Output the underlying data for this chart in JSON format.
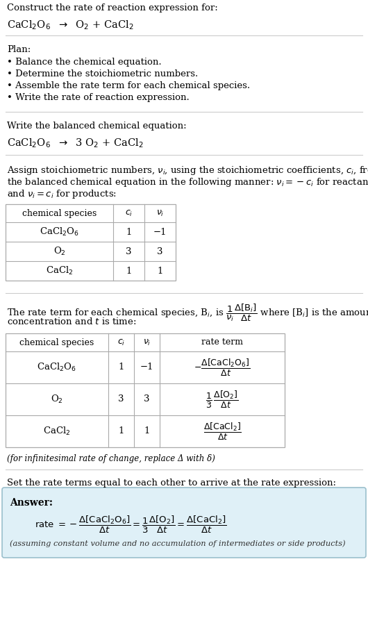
{
  "bg_color": "#ffffff",
  "title_text": "Construct the rate of reaction expression for:",
  "plan_header": "Plan:",
  "plan_items": [
    "• Balance the chemical equation.",
    "• Determine the stoichiometric numbers.",
    "• Assemble the rate term for each chemical species.",
    "• Write the rate of reaction expression."
  ],
  "balanced_header": "Write the balanced chemical equation:",
  "stoich_intro_lines": [
    "Assign stoichiometric numbers, $\\nu_i$, using the stoichiometric coefficients, $c_i$, from",
    "the balanced chemical equation in the following manner: $\\nu_i = -c_i$ for reactants",
    "and $\\nu_i = c_i$ for products:"
  ],
  "table1_headers": [
    "chemical species",
    "$c_i$",
    "$\\nu_i$"
  ],
  "table1_rows": [
    [
      "CaCl$_2$O$_6$",
      "1",
      "−1"
    ],
    [
      "O$_2$",
      "3",
      "3"
    ],
    [
      "CaCl$_2$",
      "1",
      "1"
    ]
  ],
  "rate_intro_lines": [
    "The rate term for each chemical species, B$_i$, is $\\dfrac{1}{\\nu_i}\\dfrac{\\Delta[\\mathrm{B}_i]}{\\Delta t}$ where [B$_i$] is the amount",
    "concentration and $t$ is time:"
  ],
  "table2_headers": [
    "chemical species",
    "$c_i$",
    "$\\nu_i$",
    "rate term"
  ],
  "infinitesimal_note": "(for infinitesimal rate of change, replace Δ with δ)",
  "set_equal_text": "Set the rate terms equal to each other to arrive at the rate expression:",
  "answer_label": "Answer:",
  "answer_box_color": "#dff0f7",
  "answer_border_color": "#9abfcc",
  "assuming_note": "(assuming constant volume and no accumulation of intermediates or side products)"
}
